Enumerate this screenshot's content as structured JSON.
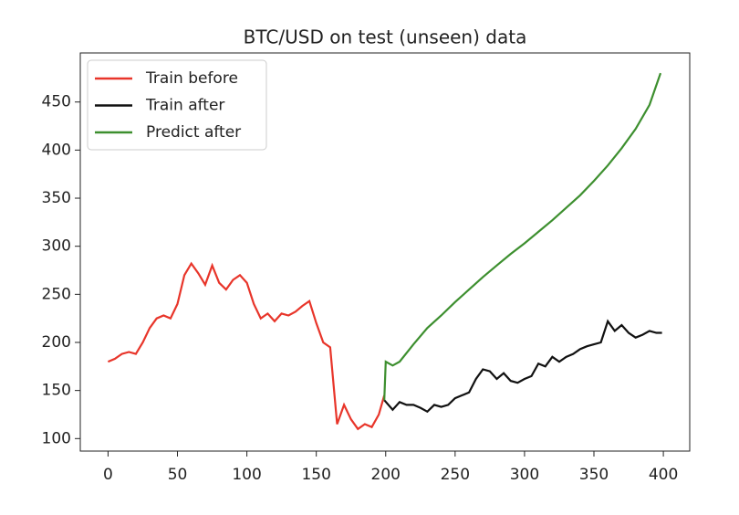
{
  "chart_data": {
    "type": "line",
    "title": "BTC/USD on test (unseen) data",
    "xlim": [
      -20,
      419
    ],
    "ylim": [
      87,
      501
    ],
    "xticks": [
      0,
      50,
      100,
      150,
      200,
      250,
      300,
      350,
      400
    ],
    "yticks": [
      100,
      150,
      200,
      250,
      300,
      350,
      400,
      450
    ],
    "grid": false,
    "legend": "upper-left",
    "series": [
      {
        "name": "Train before",
        "color": "#e8352a",
        "x": [
          0,
          5,
          10,
          15,
          20,
          25,
          30,
          35,
          40,
          45,
          50,
          55,
          60,
          65,
          70,
          75,
          80,
          85,
          90,
          95,
          100,
          105,
          110,
          115,
          120,
          125,
          130,
          135,
          140,
          145,
          150,
          155,
          160,
          165,
          170,
          175,
          180,
          185,
          190,
          195,
          199
        ],
        "values": [
          180,
          183,
          188,
          190,
          188,
          200,
          215,
          225,
          228,
          225,
          240,
          270,
          282,
          272,
          260,
          280,
          262,
          255,
          265,
          270,
          262,
          240,
          225,
          230,
          222,
          230,
          228,
          232,
          238,
          243,
          220,
          200,
          195,
          115,
          135,
          120,
          110,
          115,
          112,
          125,
          145
        ]
      },
      {
        "name": "Train after",
        "color": "#111111",
        "x": [
          199,
          205,
          210,
          215,
          220,
          225,
          230,
          235,
          240,
          245,
          250,
          255,
          260,
          265,
          270,
          275,
          280,
          285,
          290,
          295,
          300,
          305,
          310,
          315,
          320,
          325,
          330,
          335,
          340,
          345,
          350,
          355,
          360,
          365,
          370,
          375,
          380,
          385,
          390,
          395,
          399
        ],
        "values": [
          140,
          130,
          138,
          135,
          135,
          132,
          128,
          135,
          133,
          135,
          142,
          145,
          148,
          162,
          172,
          170,
          162,
          168,
          160,
          158,
          162,
          165,
          178,
          175,
          185,
          180,
          185,
          188,
          193,
          196,
          198,
          200,
          222,
          212,
          218,
          210,
          205,
          208,
          212,
          210,
          210
        ]
      },
      {
        "name": "Predict after",
        "color": "#3d8f2f",
        "x": [
          199,
          200,
          205,
          210,
          220,
          230,
          240,
          250,
          260,
          270,
          280,
          290,
          300,
          310,
          320,
          330,
          340,
          350,
          360,
          370,
          380,
          390,
          398
        ],
        "values": [
          140,
          180,
          176,
          180,
          198,
          215,
          228,
          242,
          255,
          268,
          280,
          292,
          303,
          315,
          327,
          340,
          353,
          368,
          384,
          402,
          422,
          447,
          480
        ]
      }
    ]
  }
}
